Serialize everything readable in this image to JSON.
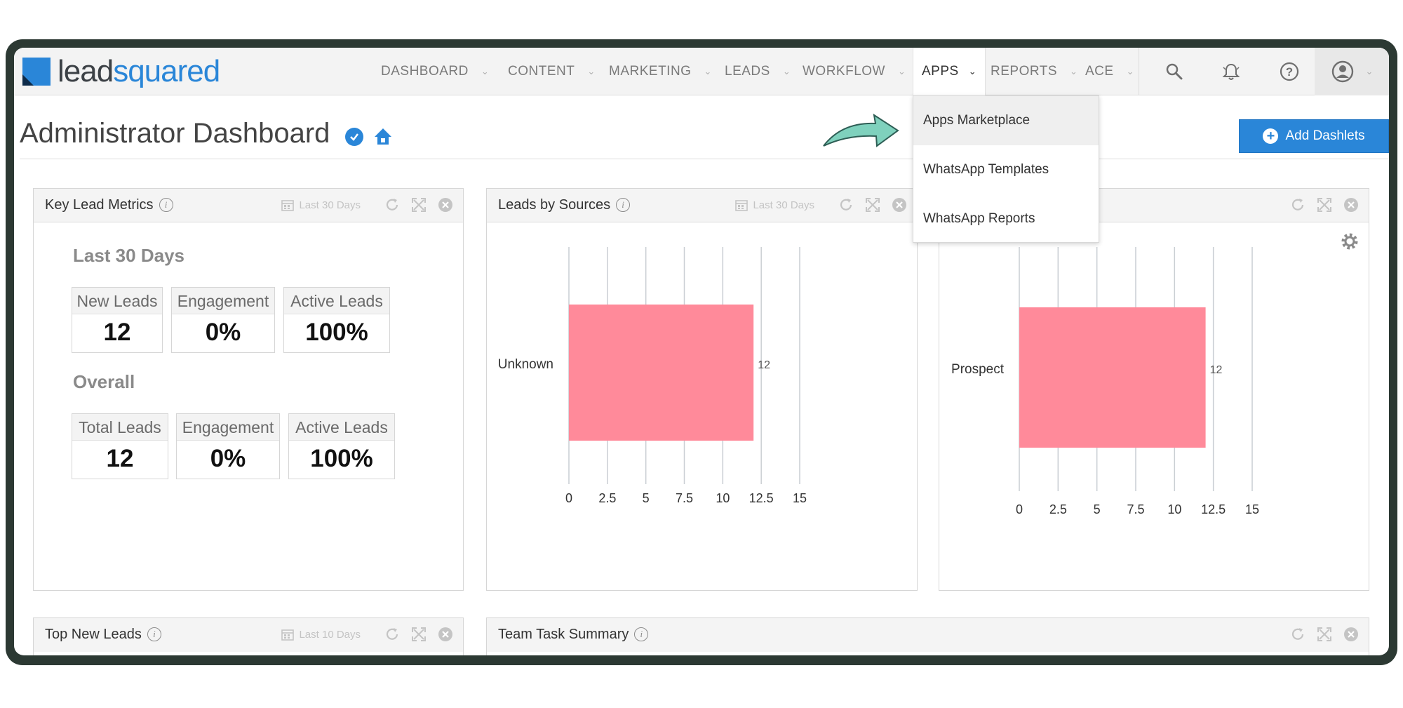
{
  "brand": {
    "logo_lead": "lead",
    "logo_rest": "squared"
  },
  "nav": {
    "items": [
      {
        "label": "DASHBOARD"
      },
      {
        "label": "CONTENT"
      },
      {
        "label": "MARKETING"
      },
      {
        "label": "LEADS"
      },
      {
        "label": "WORKFLOW"
      },
      {
        "label": "APPS",
        "active": true
      },
      {
        "label": "REPORTS"
      },
      {
        "label": "ACE"
      }
    ],
    "icons": [
      "search-icon",
      "bell-icon",
      "help-icon",
      "user-icon"
    ]
  },
  "apps_menu": {
    "items": [
      "Apps Marketplace",
      "WhatsApp Templates",
      "WhatsApp Reports"
    ],
    "hovered": "Apps Marketplace"
  },
  "page": {
    "title": "Administrator Dashboard",
    "add_button": "Add Dashlets"
  },
  "dashlets": {
    "key_metrics": {
      "title": "Key Lead Metrics",
      "range": "Last 30 Days",
      "section1": "Last 30 Days",
      "section1_metrics": [
        {
          "label": "New Leads",
          "value": "12"
        },
        {
          "label": "Engagement",
          "value": "0%"
        },
        {
          "label": "Active Leads",
          "value": "100%"
        }
      ],
      "section2": "Overall",
      "section2_metrics": [
        {
          "label": "Total Leads",
          "value": "12"
        },
        {
          "label": "Engagement",
          "value": "0%"
        },
        {
          "label": "Active Leads",
          "value": "100%"
        }
      ]
    },
    "leads_by_sources": {
      "title": "Leads by Sources",
      "range": "Last 30 Days"
    },
    "third": {
      "title_visible": ""
    },
    "top_new_leads": {
      "title": "Top New Leads",
      "range": "Last 10 Days"
    },
    "team_task_summary": {
      "title": "Team Task Summary"
    }
  },
  "colors": {
    "accent": "#2a86d8",
    "bar": "#ff8a9a",
    "frame": "#2c3933"
  },
  "chart_data": [
    {
      "type": "bar",
      "orientation": "horizontal",
      "categories": [
        "Unknown"
      ],
      "values": [
        12
      ],
      "data_labels": [
        "12"
      ],
      "xticks": [
        "0",
        "2.5",
        "5",
        "7.5",
        "10",
        "12.5",
        "15"
      ],
      "xlim": [
        0,
        15
      ],
      "grid": true
    },
    {
      "type": "bar",
      "orientation": "horizontal",
      "categories": [
        "Prospect"
      ],
      "values": [
        12
      ],
      "data_labels": [
        "12"
      ],
      "xticks": [
        "0",
        "2.5",
        "5",
        "7.5",
        "10",
        "12.5",
        "15"
      ],
      "xlim": [
        0,
        15
      ],
      "grid": true
    }
  ]
}
